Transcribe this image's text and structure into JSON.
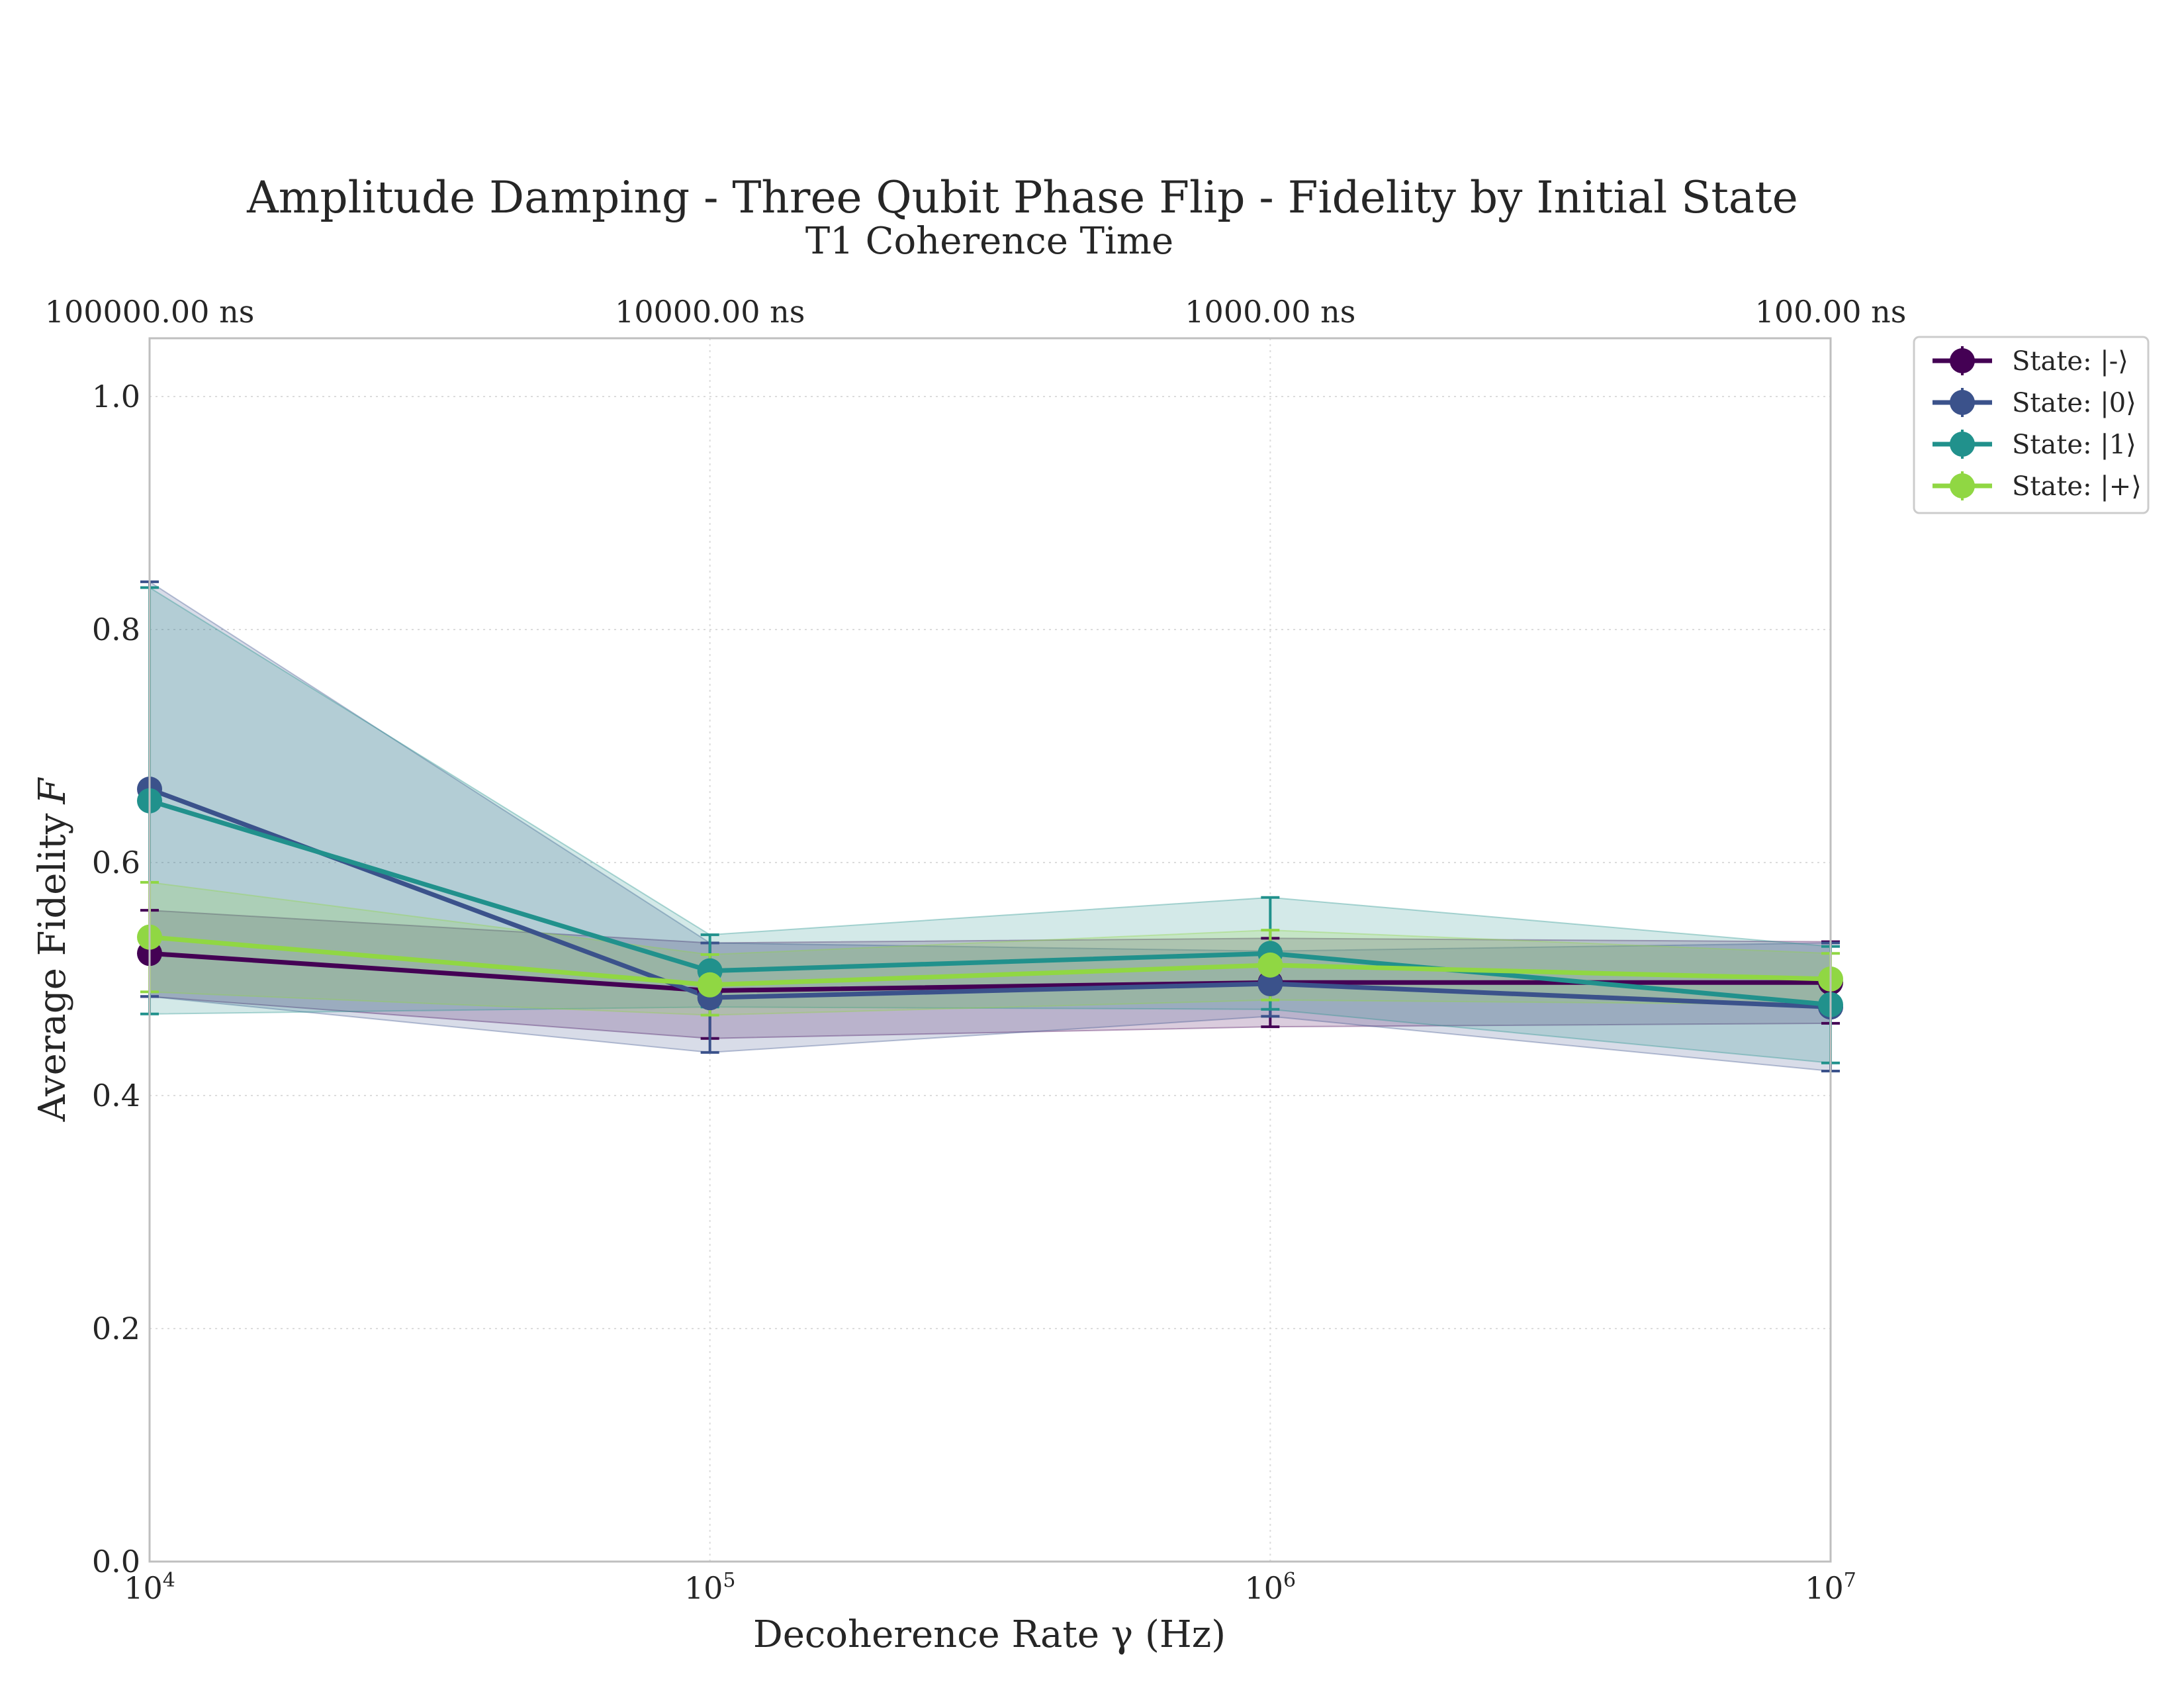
{
  "chart_data": {
    "type": "line",
    "title": "Amplitude Damping - Three Qubit Phase Flip - Fidelity by Initial State",
    "subtitle": "T1 Coherence Time",
    "xlabel": "Decoherence Rate γ (Hz)",
    "ylabel": "Average Fidelity",
    "ylabel_symbol": "F",
    "xscale": "log",
    "xlim": [
      10000,
      10000000
    ],
    "ylim": [
      0.0,
      1.05
    ],
    "x": [
      10000,
      100000,
      1000000,
      10000000
    ],
    "x_tick_labels": [
      {
        "base": "10",
        "exp": "4"
      },
      {
        "base": "10",
        "exp": "5"
      },
      {
        "base": "10",
        "exp": "6"
      },
      {
        "base": "10",
        "exp": "7"
      }
    ],
    "y_ticks": [
      0.0,
      0.2,
      0.4,
      0.6,
      0.8,
      1.0
    ],
    "y_tick_labels": [
      "0.0",
      "0.2",
      "0.4",
      "0.6",
      "0.8",
      "1.0"
    ],
    "top_axis_labels": [
      "100000.00 ns",
      "10000.00 ns",
      "1000.00 ns",
      "100.00 ns"
    ],
    "grid": true,
    "legend_position": "outside top-right",
    "series": [
      {
        "name": "State: |-⟩",
        "color": "#440154",
        "values": [
          0.522,
          0.49,
          0.497,
          0.497
        ],
        "err": [
          0.037,
          0.041,
          0.038,
          0.035
        ]
      },
      {
        "name": "State: |0⟩",
        "color": "#3b528b",
        "values": [
          0.663,
          0.484,
          0.496,
          0.476
        ],
        "err": [
          0.178,
          0.047,
          0.028,
          0.055
        ]
      },
      {
        "name": "State: |1⟩",
        "color": "#21918c",
        "values": [
          0.653,
          0.507,
          0.522,
          0.478
        ],
        "err": [
          0.183,
          0.031,
          0.048,
          0.05
        ]
      },
      {
        "name": "State: |+⟩",
        "color": "#90d743",
        "values": [
          0.536,
          0.495,
          0.512,
          0.5
        ],
        "err": [
          0.047,
          0.026,
          0.03,
          0.022
        ]
      }
    ]
  }
}
